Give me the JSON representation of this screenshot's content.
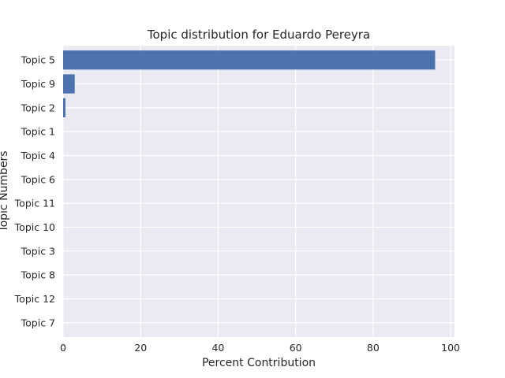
{
  "chart_data": {
    "type": "bar",
    "orientation": "horizontal",
    "title": "Topic distribution for Eduardo Pereyra",
    "xlabel": "Percent Contribution",
    "ylabel": "Topic Numbers",
    "categories": [
      "Topic 5",
      "Topic 9",
      "Topic 2",
      "Topic 1",
      "Topic 4",
      "Topic 6",
      "Topic 11",
      "Topic 10",
      "Topic 3",
      "Topic 8",
      "Topic 12",
      "Topic 7"
    ],
    "values": [
      96.0,
      3.0,
      0.6,
      0,
      0,
      0,
      0,
      0,
      0,
      0,
      0,
      0
    ],
    "xlim": [
      0,
      101
    ],
    "xticks": [
      0,
      20,
      40,
      60,
      80,
      100
    ],
    "grid": true,
    "bar_color": "#4c72b0",
    "background_color": "#eaeaf2"
  }
}
